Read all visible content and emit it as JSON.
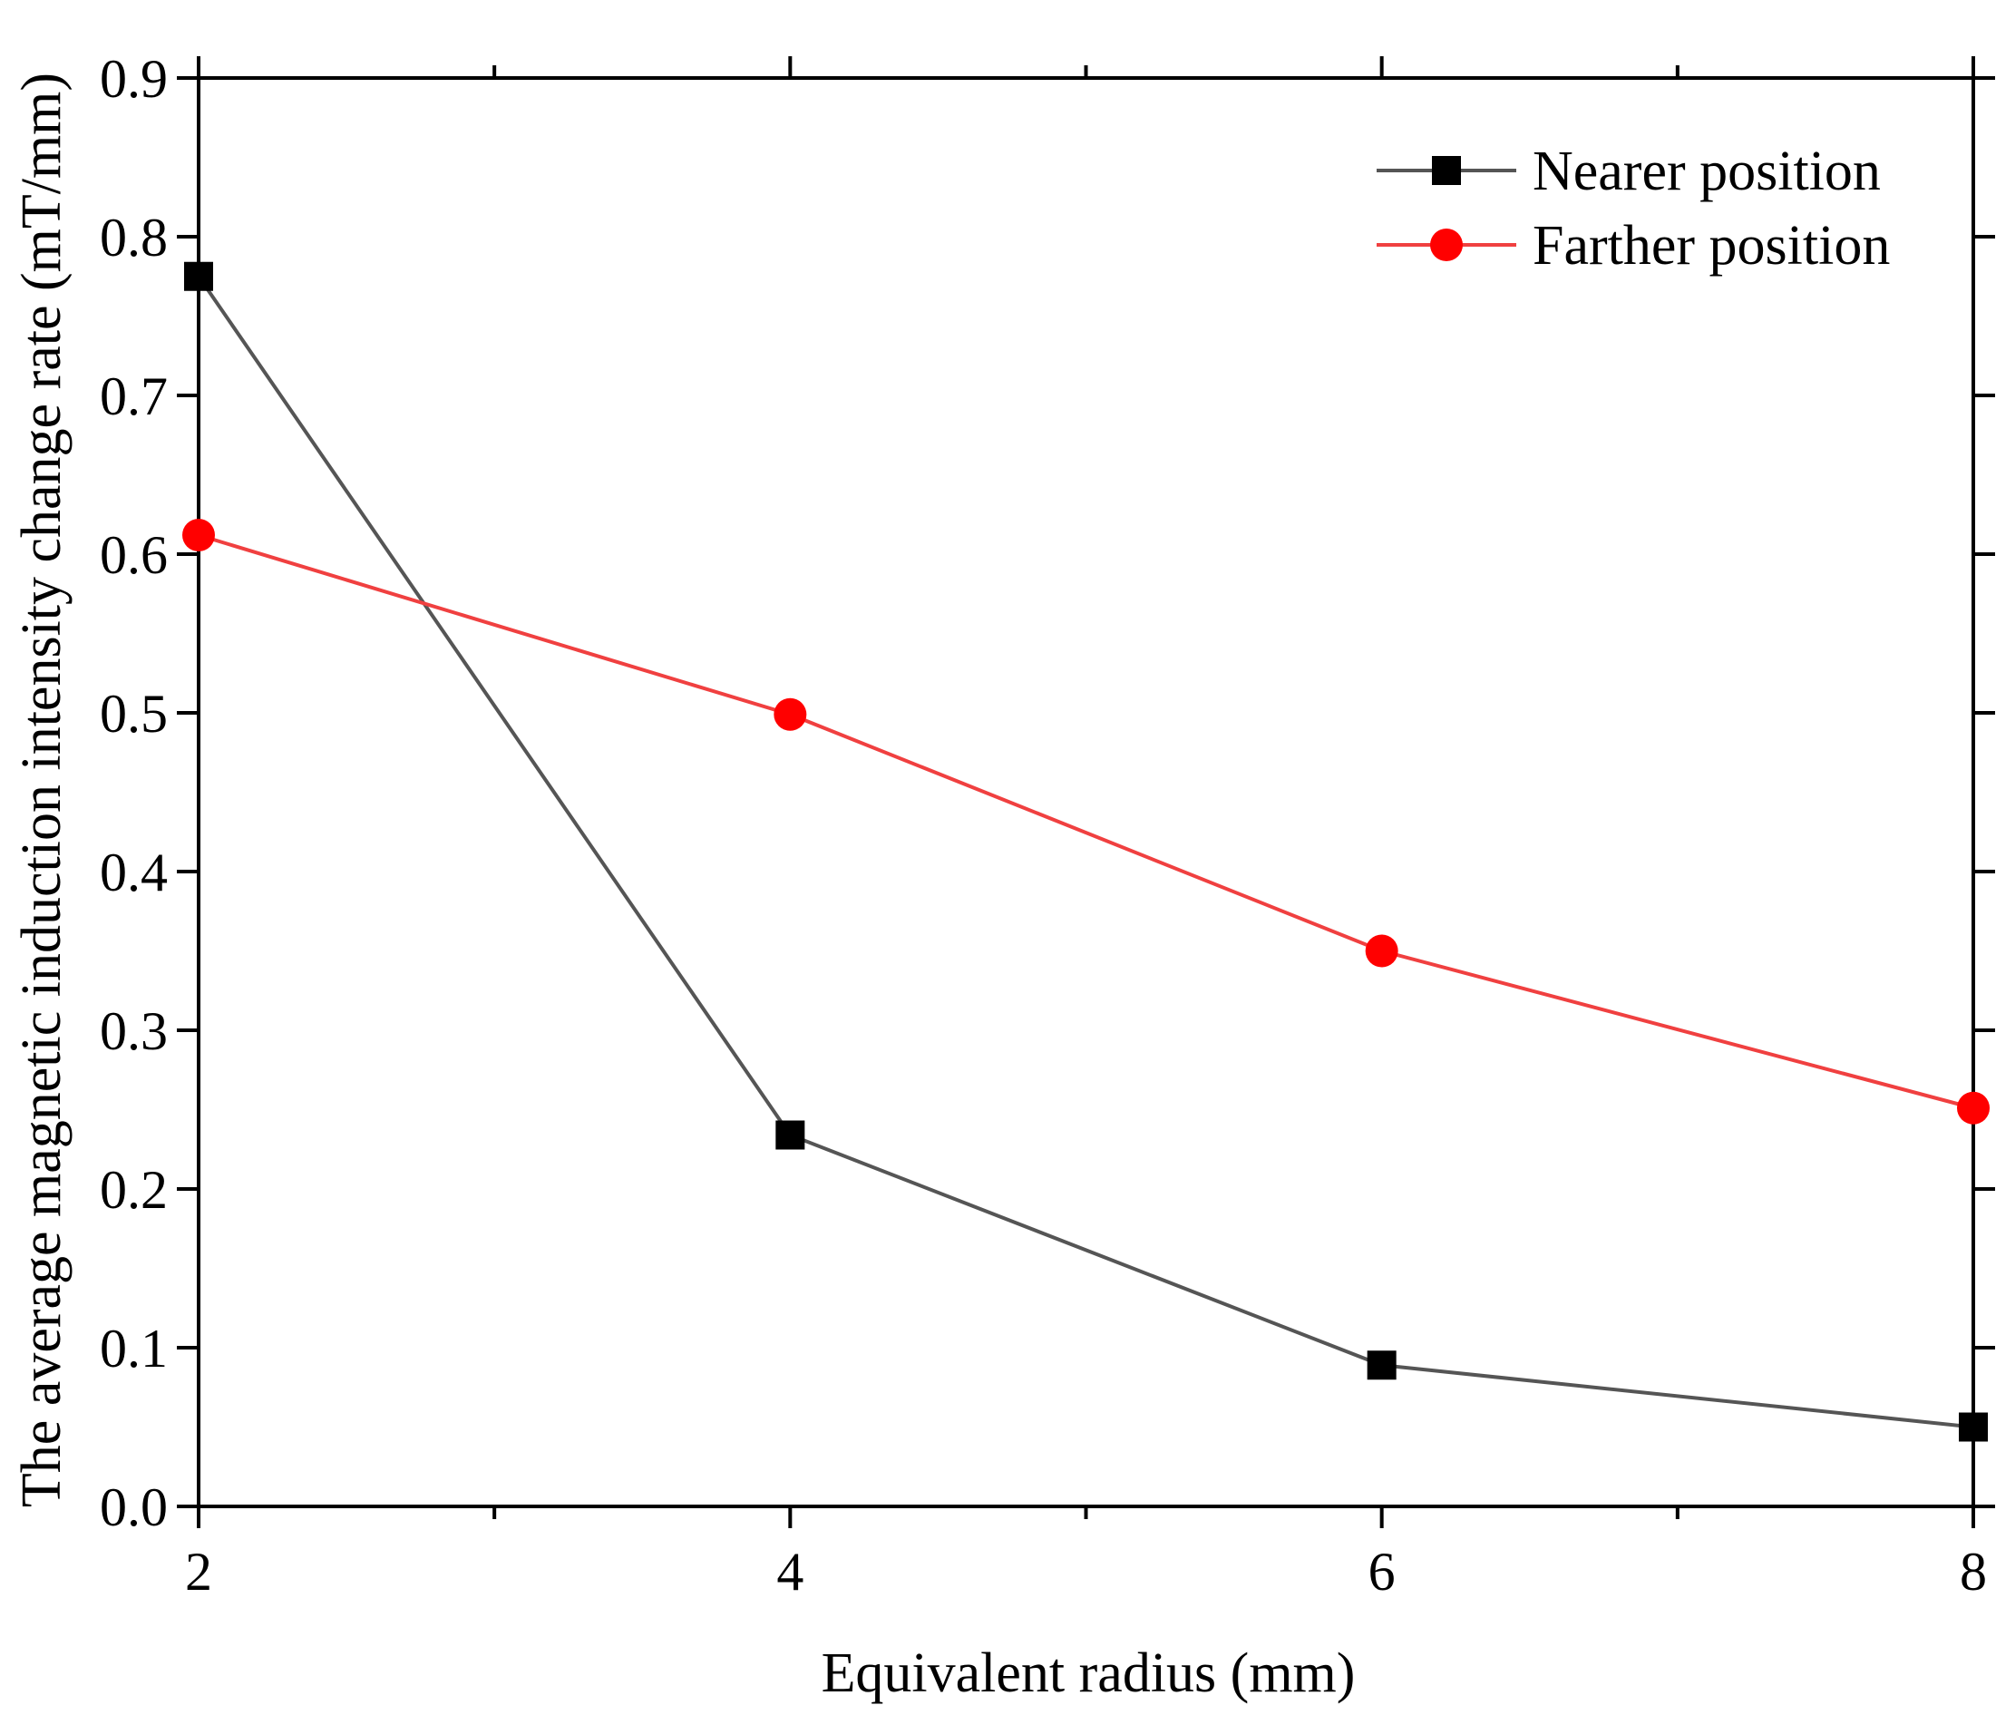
{
  "chart_data": {
    "type": "line",
    "title": "",
    "xlabel": "Equivalent radius (mm)",
    "ylabel": "The average magnetic induction intensity change rate (mT/mm)",
    "xlim": [
      2,
      8
    ],
    "ylim": [
      0.0,
      0.9
    ],
    "xticks": [
      2,
      4,
      6,
      8
    ],
    "xtick_labels": [
      "2",
      "4",
      "6",
      "8"
    ],
    "yticks": [
      0.0,
      0.1,
      0.2,
      0.3,
      0.4,
      0.5,
      0.6,
      0.7,
      0.8,
      0.9
    ],
    "ytick_labels": [
      "0.0",
      "0.1",
      "0.2",
      "0.3",
      "0.4",
      "0.5",
      "0.6",
      "0.7",
      "0.8",
      "0.9"
    ],
    "grid": false,
    "legend_position": "top-right",
    "x": [
      2,
      4,
      6,
      8
    ],
    "series": [
      {
        "name": "Nearer position",
        "values": [
          0.775,
          0.234,
          0.089,
          0.05
        ],
        "color": "#555555",
        "marker_color": "#000000",
        "marker": "square"
      },
      {
        "name": "Farther position",
        "values": [
          0.612,
          0.499,
          0.35,
          0.251
        ],
        "color": "#f04040",
        "marker_color": "#ff0000",
        "marker": "circle"
      }
    ]
  }
}
